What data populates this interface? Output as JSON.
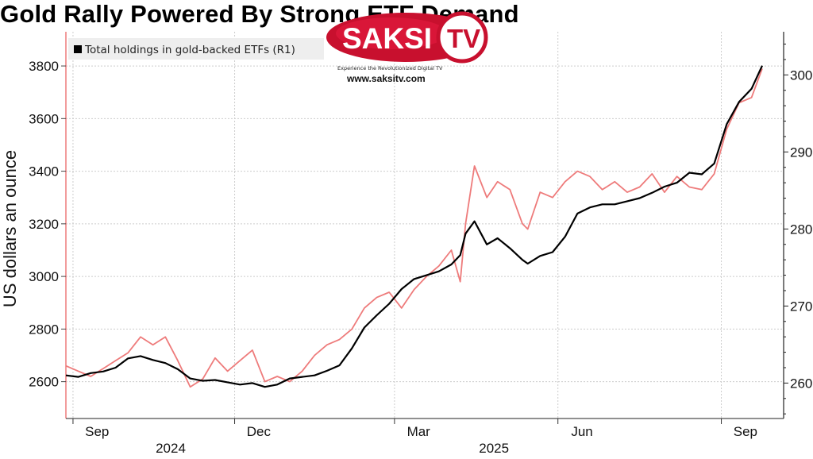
{
  "title": "Gold Rally Powered By Strong ETF Demand",
  "logo": {
    "name": "SAKSI TV",
    "tagline": "Experience the Revolutionized Digital TV",
    "url": "www.saksitv.com"
  },
  "colors": {
    "gold_price": "#ee7b7b",
    "etf_holdings": "#000000",
    "grid": "#c8c8c8"
  },
  "chart_data": {
    "type": "line",
    "title": "Gold Rally Powered By Strong ETF Demand",
    "ylabel": "US dollars an ounce",
    "x_ticks": [
      "Sep",
      "Dec",
      "Mar",
      "Jun",
      "Sep"
    ],
    "x_years": [
      "2024",
      "2025"
    ],
    "x_range": [
      "2024-08-28",
      "2025-09-24"
    ],
    "y_left_ticks": [
      "2600",
      "2800",
      "3000",
      "3200",
      "3400",
      "3600",
      "3800"
    ],
    "y_left_range": [
      2460,
      3930
    ],
    "y_right_ticks": [
      "260",
      "270",
      "280",
      "290",
      "300"
    ],
    "y_right_range": [
      255.4,
      305.6
    ],
    "legend": [
      {
        "label": "Total holdings in gold-backed ETFs (R1)",
        "color": "#000000"
      }
    ],
    "grid": true,
    "series": [
      {
        "axis": "left",
        "color": "#ee7b7b",
        "x": [
          "2024-08-28",
          "2024-09-04",
          "2024-09-11",
          "2024-09-18",
          "2024-09-25",
          "2024-10-02",
          "2024-10-09",
          "2024-10-16",
          "2024-10-23",
          "2024-10-30",
          "2024-11-06",
          "2024-11-13",
          "2024-11-20",
          "2024-11-27",
          "2024-12-04",
          "2024-12-11",
          "2024-12-18",
          "2024-12-25",
          "2025-01-01",
          "2025-01-08",
          "2025-01-15",
          "2025-01-22",
          "2025-01-29",
          "2025-02-05",
          "2025-02-12",
          "2025-02-19",
          "2025-02-26",
          "2025-03-05",
          "2025-03-12",
          "2025-03-19",
          "2025-03-26",
          "2025-04-02",
          "2025-04-07",
          "2025-04-10",
          "2025-04-15",
          "2025-04-22",
          "2025-04-28",
          "2025-05-05",
          "2025-05-12",
          "2025-05-15",
          "2025-05-22",
          "2025-05-29",
          "2025-06-05",
          "2025-06-12",
          "2025-06-19",
          "2025-06-26",
          "2025-07-03",
          "2025-07-10",
          "2025-07-17",
          "2025-07-24",
          "2025-07-31",
          "2025-08-07",
          "2025-08-14",
          "2025-08-21",
          "2025-08-28",
          "2025-09-04",
          "2025-09-11",
          "2025-09-18",
          "2025-09-24"
        ],
        "values": [
          2660,
          2640,
          2620,
          2650,
          2680,
          2710,
          2770,
          2740,
          2770,
          2680,
          2580,
          2610,
          2690,
          2640,
          2680,
          2720,
          2600,
          2620,
          2600,
          2640,
          2700,
          2740,
          2760,
          2800,
          2880,
          2920,
          2940,
          2880,
          2950,
          3000,
          3040,
          3100,
          2980,
          3200,
          3420,
          3300,
          3360,
          3330,
          3200,
          3180,
          3320,
          3300,
          3360,
          3400,
          3380,
          3330,
          3360,
          3320,
          3340,
          3390,
          3320,
          3380,
          3340,
          3330,
          3390,
          3560,
          3660,
          3680,
          3790
        ]
      },
      {
        "axis": "right",
        "name": "Total holdings in gold-backed ETFs (R1)",
        "color": "#000000",
        "x": [
          "2024-08-28",
          "2024-09-04",
          "2024-09-11",
          "2024-09-18",
          "2024-09-25",
          "2024-10-02",
          "2024-10-09",
          "2024-10-16",
          "2024-10-23",
          "2024-10-30",
          "2024-11-06",
          "2024-11-13",
          "2024-11-20",
          "2024-11-27",
          "2024-12-04",
          "2024-12-11",
          "2024-12-18",
          "2024-12-25",
          "2025-01-01",
          "2025-01-08",
          "2025-01-15",
          "2025-01-22",
          "2025-01-29",
          "2025-02-05",
          "2025-02-12",
          "2025-02-19",
          "2025-02-26",
          "2025-03-05",
          "2025-03-12",
          "2025-03-19",
          "2025-03-26",
          "2025-04-02",
          "2025-04-07",
          "2025-04-10",
          "2025-04-15",
          "2025-04-22",
          "2025-04-28",
          "2025-05-05",
          "2025-05-12",
          "2025-05-15",
          "2025-05-22",
          "2025-05-29",
          "2025-06-05",
          "2025-06-12",
          "2025-06-19",
          "2025-06-26",
          "2025-07-03",
          "2025-07-10",
          "2025-07-17",
          "2025-07-24",
          "2025-07-31",
          "2025-08-07",
          "2025-08-14",
          "2025-08-21",
          "2025-08-28",
          "2025-09-04",
          "2025-09-11",
          "2025-09-18",
          "2025-09-24"
        ],
        "values": [
          261.0,
          260.8,
          261.3,
          261.5,
          262.0,
          263.2,
          263.5,
          263.0,
          262.6,
          261.8,
          260.6,
          260.3,
          260.4,
          260.1,
          259.8,
          260.0,
          259.5,
          259.8,
          260.6,
          260.8,
          261.0,
          261.6,
          262.3,
          264.5,
          267.2,
          268.8,
          270.3,
          272.2,
          273.5,
          274.0,
          274.5,
          275.4,
          276.6,
          279.4,
          281.0,
          278.0,
          278.8,
          277.5,
          276.0,
          275.5,
          276.5,
          277.0,
          279.0,
          282.0,
          282.8,
          283.2,
          283.2,
          283.6,
          284.0,
          284.7,
          285.5,
          286.0,
          287.3,
          287.1,
          288.5,
          293.6,
          296.5,
          298.2,
          301.2
        ]
      }
    ]
  }
}
